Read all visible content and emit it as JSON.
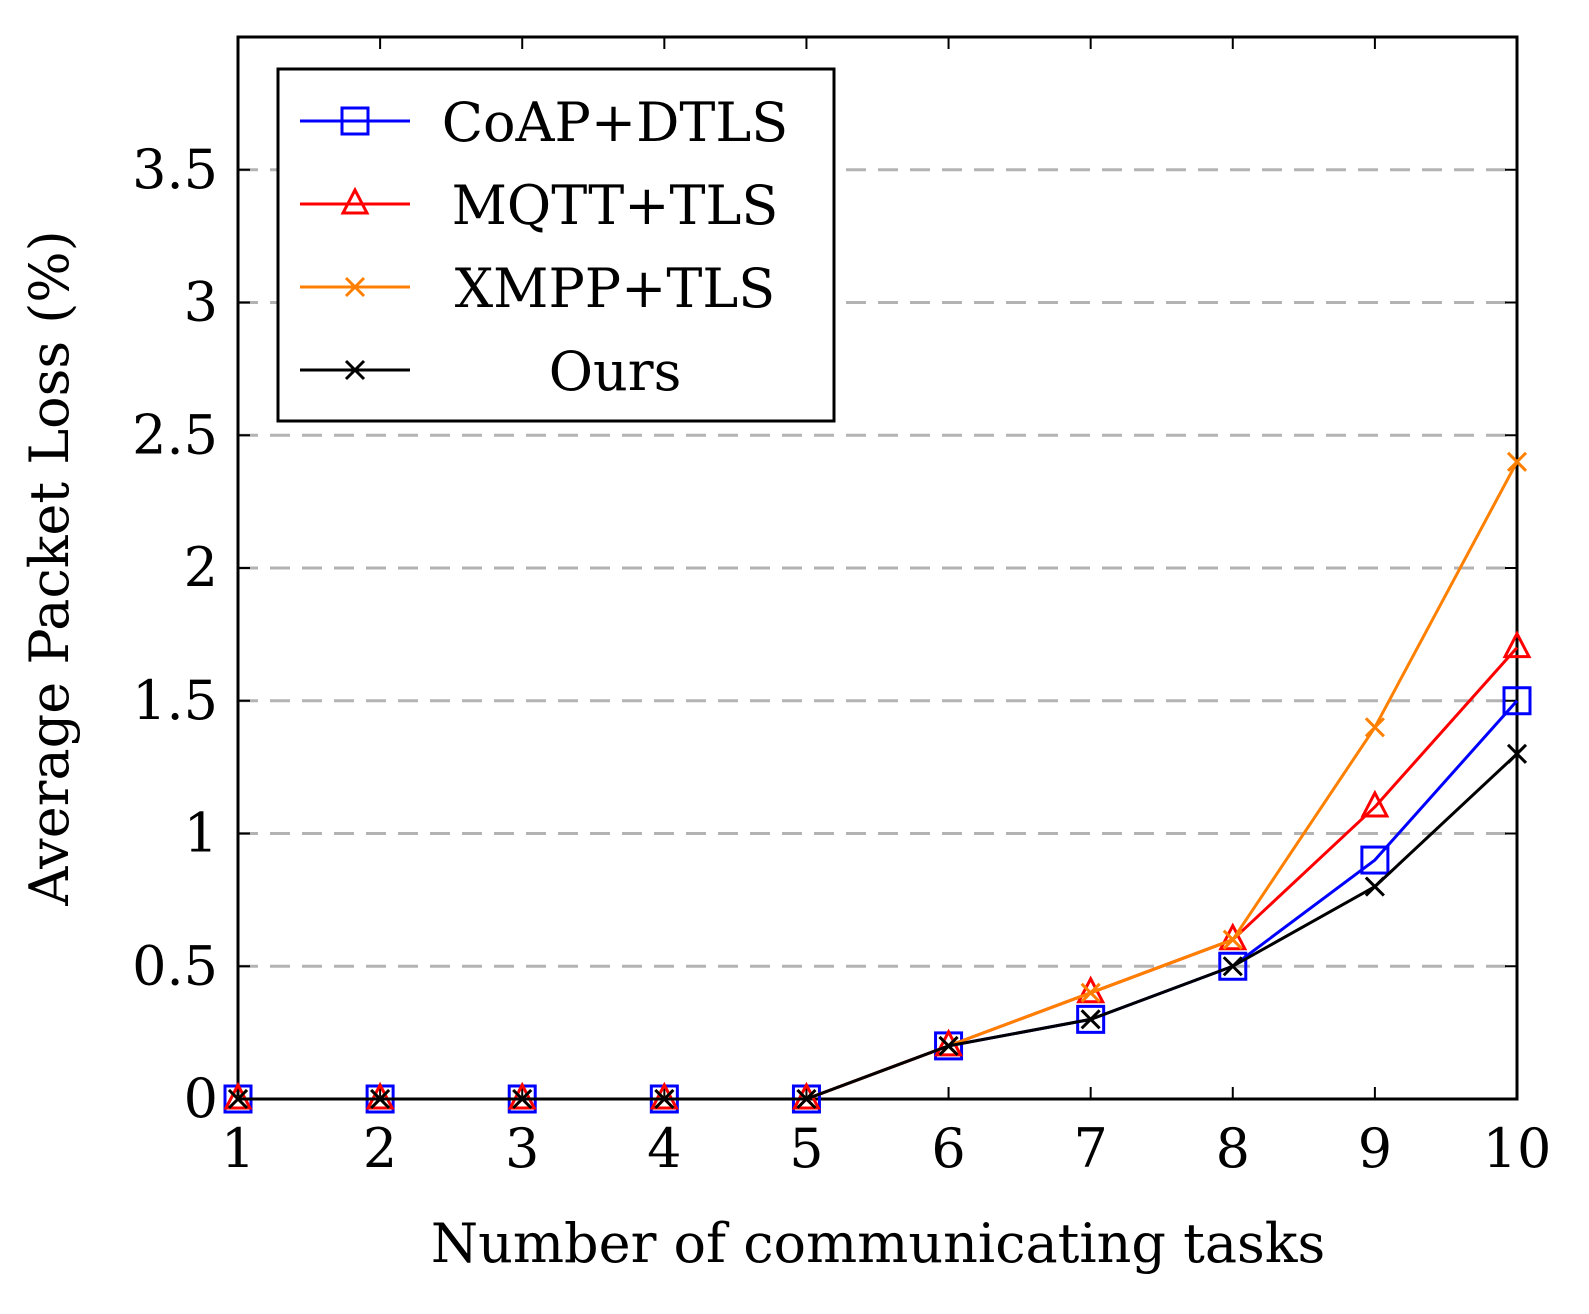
{
  "chart_data": {
    "type": "line",
    "title": "",
    "xlabel": "Number of communicating tasks",
    "ylabel": "Average Packet Loss (%)",
    "x": [
      1,
      2,
      3,
      4,
      5,
      6,
      7,
      8,
      9,
      10
    ],
    "xlim": [
      1,
      10
    ],
    "ylim": [
      0,
      4
    ],
    "xticks": [
      "1",
      "2",
      "3",
      "4",
      "5",
      "6",
      "7",
      "8",
      "9",
      "10"
    ],
    "yticks": [
      0,
      0.5,
      1,
      1.5,
      2,
      2.5,
      3,
      3.5
    ],
    "ytick_labels": [
      "0",
      "0.5",
      "1",
      "1.5",
      "2",
      "2.5",
      "3",
      "3.5"
    ],
    "grid": "horizontal dashed",
    "legend_position": "top-left",
    "series": [
      {
        "name": "CoAP+DTLS",
        "color": "#0000ff",
        "marker": "square",
        "values": [
          0,
          0,
          0,
          0,
          0,
          0.2,
          0.3,
          0.5,
          0.9,
          1.5
        ]
      },
      {
        "name": "MQTT+TLS",
        "color": "#ff0000",
        "marker": "triangle",
        "values": [
          0,
          0,
          0,
          0,
          0,
          0.2,
          0.4,
          0.6,
          1.1,
          1.7
        ]
      },
      {
        "name": "XMPP+TLS",
        "color": "#ff8000",
        "marker": "x",
        "values": [
          0,
          0,
          0,
          0,
          0,
          0.2,
          0.4,
          0.6,
          1.4,
          2.4
        ]
      },
      {
        "name": "Ours",
        "color": "#000000",
        "marker": "x",
        "values": [
          0,
          0,
          0,
          0,
          0,
          0.2,
          0.3,
          0.5,
          0.8,
          1.3
        ]
      }
    ]
  }
}
